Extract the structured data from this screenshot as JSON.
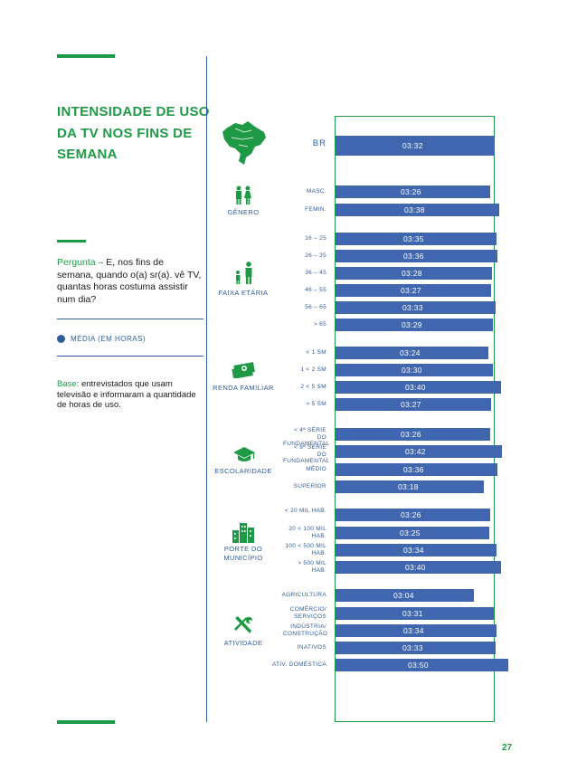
{
  "title": "INTENSIDADE DE USO DA TV NOS FINS DE SEMANA",
  "question_lead": "Pergunta –",
  "question_text": "E, nos fins de semana, quando o(a) sr(a). vê TV, quantas horas costuma assistir num dia?",
  "legend": "MÉDIA (EM HORAS)",
  "base_lead": "Base:",
  "base_text": "entrevistados que usam televisão e informaram a quantidade de horas de uso.",
  "page_number": "27",
  "colors": {
    "accent_green": "#1e9a46",
    "bar_blue": "#3f66ae",
    "label_blue": "#2f5d9b"
  },
  "categories": {
    "genero": "GÊNERO",
    "faixa": "FAIXA ETÁRIA",
    "renda": "RENDA FAMILIAR",
    "escolaridade": "ESCOLARIDADE",
    "porte": "PORTE DO MUNICÍPIO",
    "atividade": "ATIVIDADE"
  },
  "chart_data": {
    "type": "bar",
    "orientation": "horizontal",
    "unit": "hh:mm",
    "reference": {
      "label": "BR",
      "value": "03:32"
    },
    "rows": [
      {
        "group": "BR",
        "label": "BR",
        "value": "03:32",
        "minutes": 212
      },
      {
        "group": "GÊNERO",
        "label": "MASC.",
        "value": "03:26",
        "minutes": 206
      },
      {
        "group": "GÊNERO",
        "label": "FEMIN.",
        "value": "03:38",
        "minutes": 218
      },
      {
        "group": "FAIXA ETÁRIA",
        "label": "16 – 25",
        "value": "03:35",
        "minutes": 215
      },
      {
        "group": "FAIXA ETÁRIA",
        "label": "26 – 35",
        "value": "03:36",
        "minutes": 216
      },
      {
        "group": "FAIXA ETÁRIA",
        "label": "36 – 45",
        "value": "03:28",
        "minutes": 208
      },
      {
        "group": "FAIXA ETÁRIA",
        "label": "46 – 55",
        "value": "03:27",
        "minutes": 207
      },
      {
        "group": "FAIXA ETÁRIA",
        "label": "56 – 65",
        "value": "03:33",
        "minutes": 213
      },
      {
        "group": "FAIXA ETÁRIA",
        "label": "> 65",
        "value": "03:29",
        "minutes": 209
      },
      {
        "group": "RENDA FAMILIAR",
        "label": "< 1 SM",
        "value": "03:24",
        "minutes": 204
      },
      {
        "group": "RENDA FAMILIAR",
        "label": "1 < 2 SM",
        "value": "03:30",
        "minutes": 210
      },
      {
        "group": "RENDA FAMILIAR",
        "label": "2 < 5 SM",
        "value": "03:40",
        "minutes": 220
      },
      {
        "group": "RENDA FAMILIAR",
        "label": "> 5 SM",
        "value": "03:27",
        "minutes": 207
      },
      {
        "group": "ESCOLARIDADE",
        "label": "< 4ª SÉRIE DO FUNDAMENTAL",
        "value": "03:26",
        "minutes": 206
      },
      {
        "group": "ESCOLARIDADE",
        "label": "< 8ª SÉRIE DO FUNDAMENTAL",
        "value": "03:42",
        "minutes": 222
      },
      {
        "group": "ESCOLARIDADE",
        "label": "MÉDIO",
        "value": "03:36",
        "minutes": 216
      },
      {
        "group": "ESCOLARIDADE",
        "label": "SUPERIOR",
        "value": "03:18",
        "minutes": 198
      },
      {
        "group": "PORTE DO MUNICÍPIO",
        "label": "< 20 MIL HAB.",
        "value": "03:26",
        "minutes": 206
      },
      {
        "group": "PORTE DO MUNICÍPIO",
        "label": "20 < 100 MIL HAB.",
        "value": "03:25",
        "minutes": 205
      },
      {
        "group": "PORTE DO MUNICÍPIO",
        "label": "100 < 500 MIL HAB.",
        "value": "03:34",
        "minutes": 214
      },
      {
        "group": "PORTE DO MUNICÍPIO",
        "label": "> 500 MIL HAB.",
        "value": "03:40",
        "minutes": 220
      },
      {
        "group": "ATIVIDADE",
        "label": "AGRICULTURA",
        "value": "03:04",
        "minutes": 184
      },
      {
        "group": "ATIVIDADE",
        "label": "COMÉRCIO/ SERVIÇOS",
        "value": "03:31",
        "minutes": 211
      },
      {
        "group": "ATIVIDADE",
        "label": "INDÚSTRIA/ CONSTRUÇÃO",
        "value": "03:34",
        "minutes": 214
      },
      {
        "group": "ATIVIDADE",
        "label": "INATIVOS",
        "value": "03:33",
        "minutes": 213
      },
      {
        "group": "ATIVIDADE",
        "label": "ATIV. DOMÉSTICA",
        "value": "03:50",
        "minutes": 230
      }
    ]
  }
}
